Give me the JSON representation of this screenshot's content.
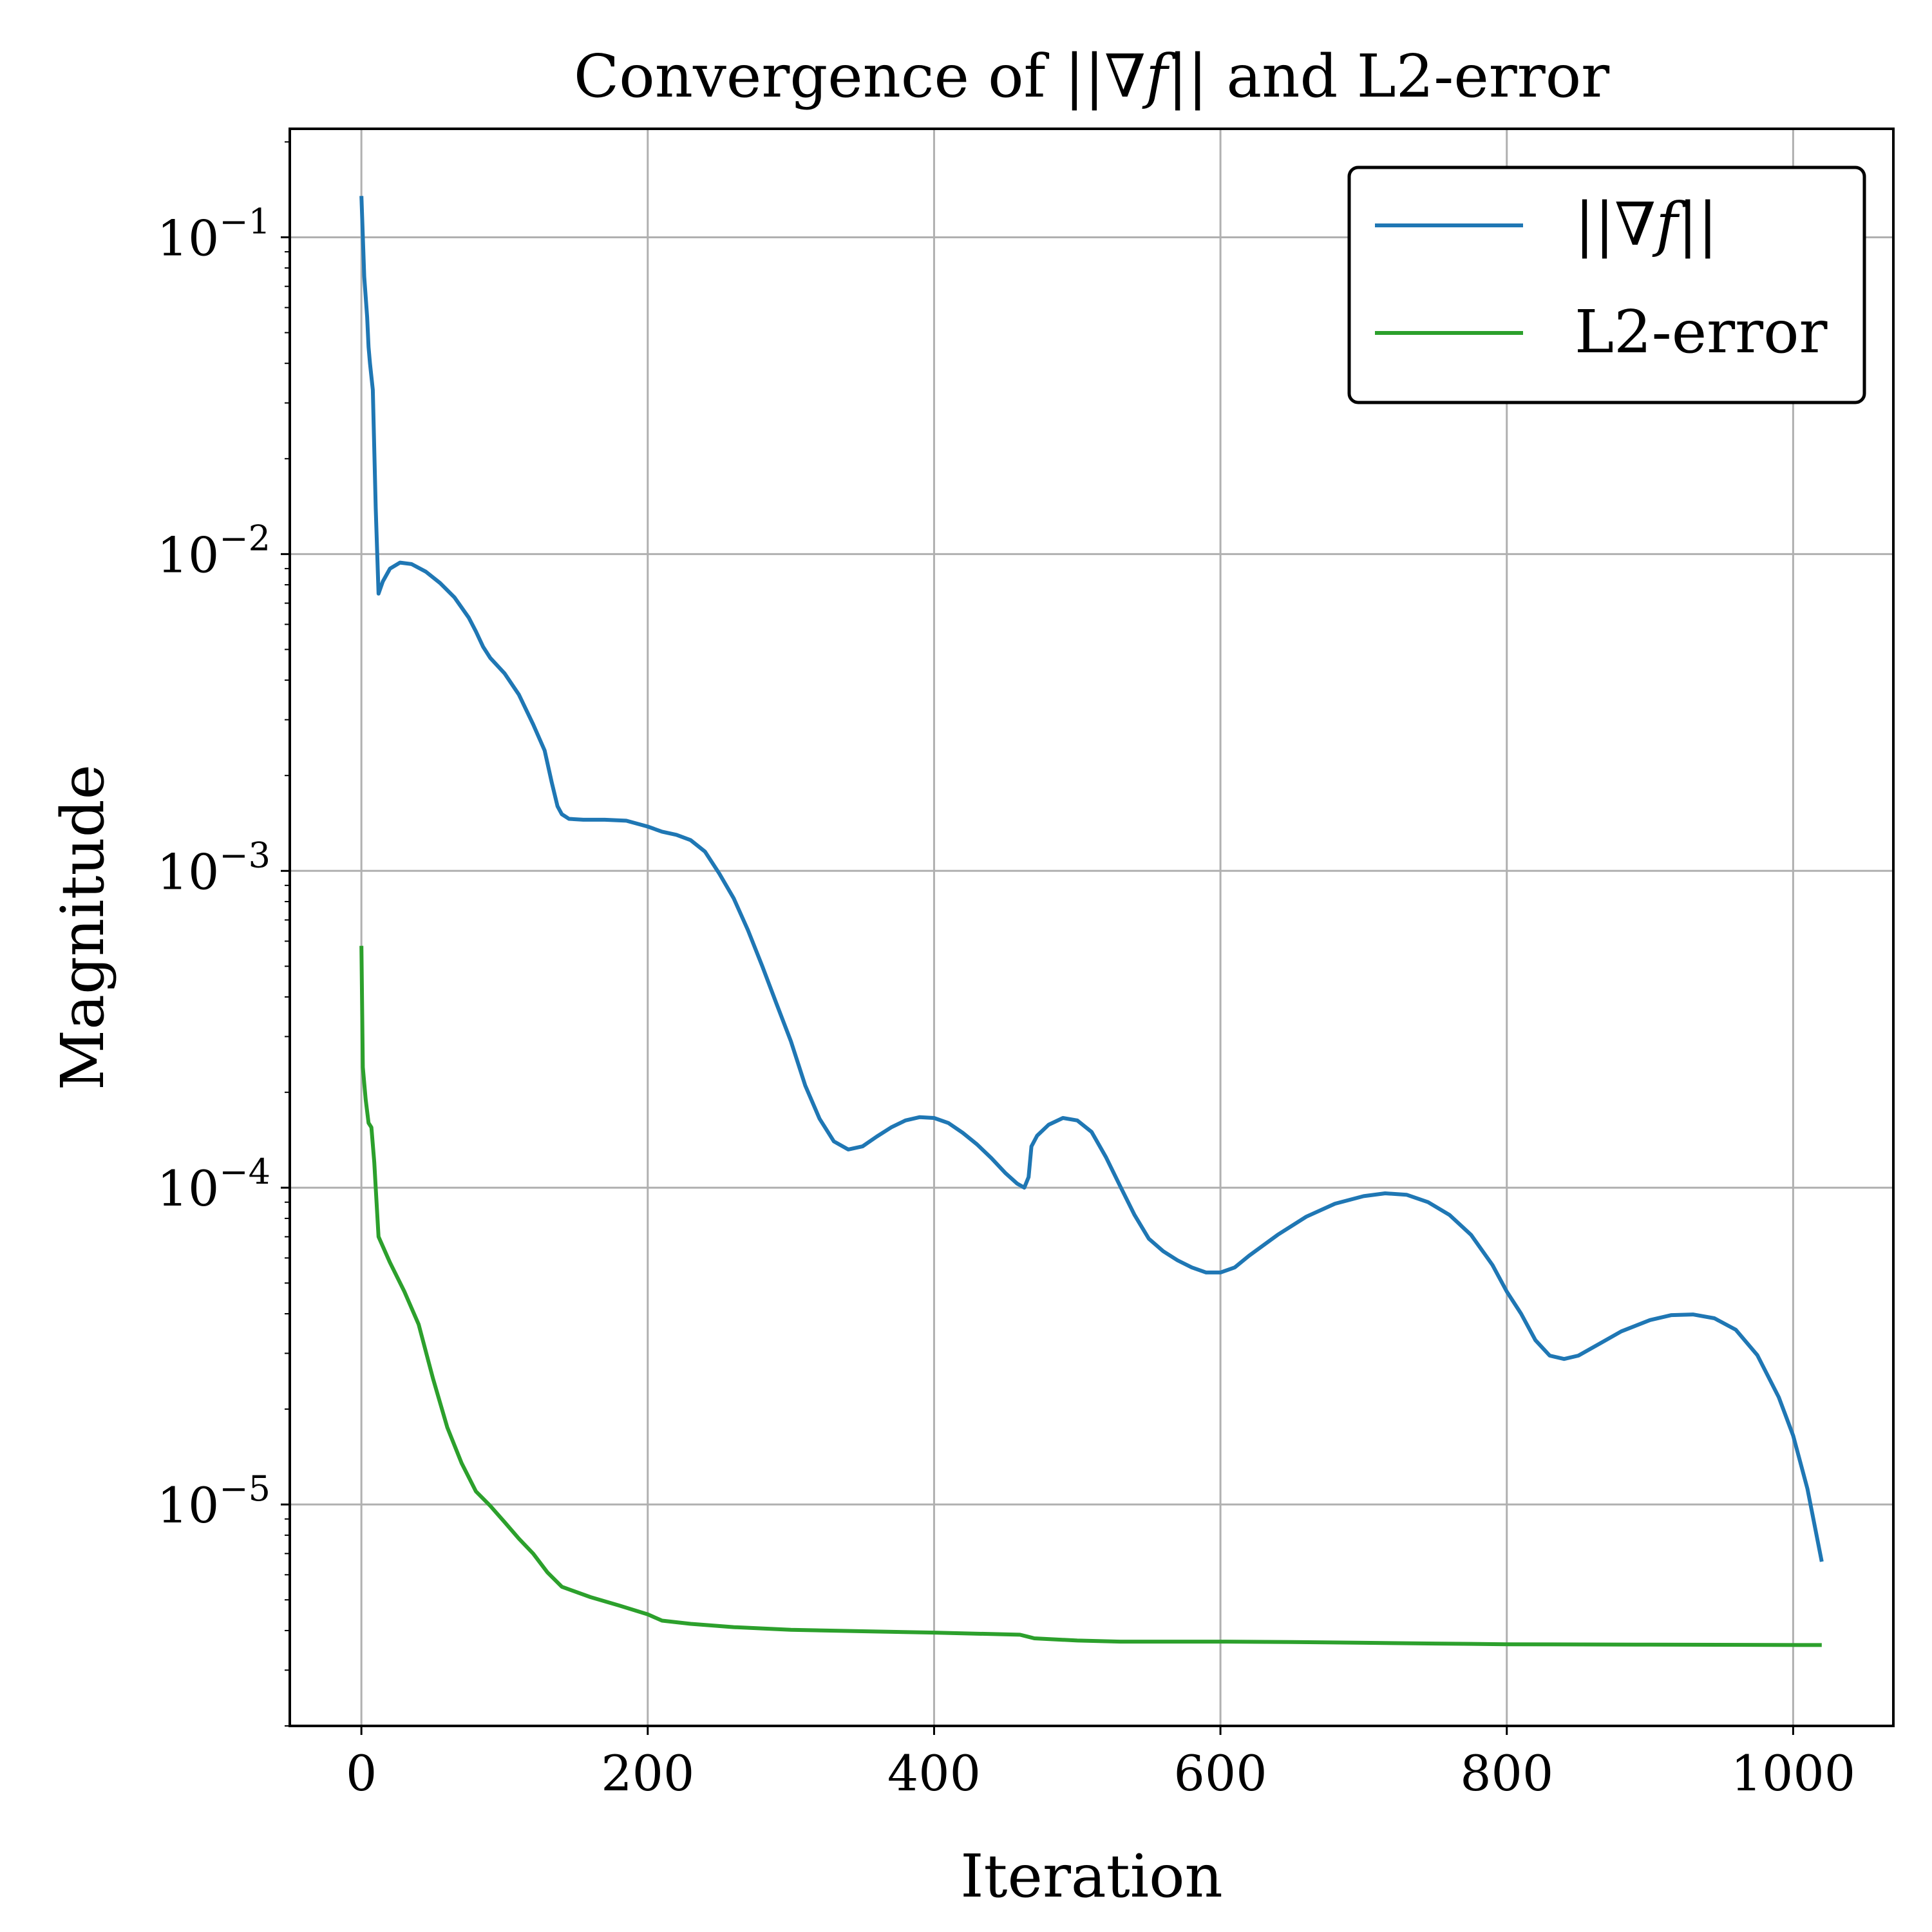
{
  "chart_data": {
    "type": "line",
    "title_parts": [
      "Convergence of ||∇",
      "f",
      "|| and L2-error"
    ],
    "xlabel": "Iteration",
    "ylabel": "Magnitude",
    "xlim": [
      -50,
      1070
    ],
    "ylim": [
      2e-06,
      0.22
    ],
    "yscale": "log",
    "grid": true,
    "legend_position": "top-right",
    "xticks": [
      0,
      200,
      400,
      600,
      800,
      1000
    ],
    "xtick_labels": [
      "0",
      "200",
      "400",
      "600",
      "800",
      "1000"
    ],
    "yticks": [
      1e-05,
      0.0001,
      0.001,
      0.01,
      0.1
    ],
    "ytick_bases": [
      "10",
      "10",
      "10",
      "10",
      "10"
    ],
    "ytick_exponents": [
      "−5",
      "−4",
      "−3",
      "−2",
      "−1"
    ],
    "series": [
      {
        "name_parts": [
          "||∇",
          "f",
          "||"
        ],
        "color": "#1f77b4",
        "points": [
          [
            0,
            0.135
          ],
          [
            2,
            0.075
          ],
          [
            4,
            0.056
          ],
          [
            5,
            0.045
          ],
          [
            6,
            0.04
          ],
          [
            8,
            0.033
          ],
          [
            10,
            0.014
          ],
          [
            12,
            0.0075
          ],
          [
            15,
            0.0082
          ],
          [
            20,
            0.009
          ],
          [
            27,
            0.0094
          ],
          [
            35,
            0.0093
          ],
          [
            45,
            0.0088
          ],
          [
            55,
            0.0081
          ],
          [
            65,
            0.0073
          ],
          [
            75,
            0.0063
          ],
          [
            80,
            0.0057
          ],
          [
            85,
            0.0051
          ],
          [
            90,
            0.0047
          ],
          [
            100,
            0.0042
          ],
          [
            110,
            0.0036
          ],
          [
            120,
            0.0029
          ],
          [
            128,
            0.0024
          ],
          [
            133,
            0.0019
          ],
          [
            137,
            0.0016
          ],
          [
            140,
            0.00151
          ],
          [
            145,
            0.00146
          ],
          [
            155,
            0.00145
          ],
          [
            170,
            0.00145
          ],
          [
            185,
            0.00144
          ],
          [
            200,
            0.00138
          ],
          [
            210,
            0.00133
          ],
          [
            220,
            0.0013
          ],
          [
            230,
            0.00125
          ],
          [
            240,
            0.00115
          ],
          [
            250,
            0.00098
          ],
          [
            260,
            0.00082
          ],
          [
            270,
            0.00065
          ],
          [
            280,
            0.0005
          ],
          [
            290,
            0.00038
          ],
          [
            300,
            0.00029
          ],
          [
            310,
            0.00021
          ],
          [
            320,
            0.000165
          ],
          [
            330,
            0.00014
          ],
          [
            340,
            0.000132
          ],
          [
            350,
            0.000135
          ],
          [
            360,
            0.000145
          ],
          [
            370,
            0.000155
          ],
          [
            380,
            0.000163
          ],
          [
            390,
            0.000167
          ],
          [
            400,
            0.000166
          ],
          [
            410,
            0.00016
          ],
          [
            420,
            0.000149
          ],
          [
            430,
            0.000137
          ],
          [
            440,
            0.000124
          ],
          [
            450,
            0.000111
          ],
          [
            458,
            0.000103
          ],
          [
            463,
            0.0001
          ],
          [
            466,
            0.000108
          ],
          [
            468,
            0.000135
          ],
          [
            472,
            0.000146
          ],
          [
            480,
            0.000158
          ],
          [
            490,
            0.000166
          ],
          [
            500,
            0.000163
          ],
          [
            510,
            0.00015
          ],
          [
            520,
            0.000125
          ],
          [
            530,
            0.000101
          ],
          [
            540,
            8.2e-05
          ],
          [
            550,
            6.9e-05
          ],
          [
            560,
            6.3e-05
          ],
          [
            570,
            5.9e-05
          ],
          [
            580,
            5.6e-05
          ],
          [
            590,
            5.4e-05
          ],
          [
            600,
            5.4e-05
          ],
          [
            610,
            5.6e-05
          ],
          [
            620,
            6.1e-05
          ],
          [
            640,
            7.1e-05
          ],
          [
            660,
            8.1e-05
          ],
          [
            680,
            8.9e-05
          ],
          [
            700,
            9.4e-05
          ],
          [
            715,
            9.6e-05
          ],
          [
            730,
            9.5e-05
          ],
          [
            745,
            9e-05
          ],
          [
            760,
            8.2e-05
          ],
          [
            775,
            7.1e-05
          ],
          [
            790,
            5.7e-05
          ],
          [
            800,
            4.7e-05
          ],
          [
            810,
            4e-05
          ],
          [
            820,
            3.3e-05
          ],
          [
            830,
            2.95e-05
          ],
          [
            840,
            2.88e-05
          ],
          [
            850,
            2.95e-05
          ],
          [
            865,
            3.22e-05
          ],
          [
            880,
            3.52e-05
          ],
          [
            900,
            3.82e-05
          ],
          [
            915,
            3.96e-05
          ],
          [
            930,
            3.98e-05
          ],
          [
            945,
            3.87e-05
          ],
          [
            960,
            3.56e-05
          ],
          [
            975,
            2.96e-05
          ],
          [
            990,
            2.18e-05
          ],
          [
            1000,
            1.65e-05
          ],
          [
            1010,
            1.12e-05
          ],
          [
            1020,
            6.6e-06
          ]
        ]
      },
      {
        "name": "L2-error",
        "color": "#2ca02c",
        "points": [
          [
            0,
            0.00058
          ],
          [
            1,
            0.00024
          ],
          [
            3,
            0.00019
          ],
          [
            5,
            0.00016
          ],
          [
            7,
            0.000155
          ],
          [
            9,
            0.00012
          ],
          [
            10,
            0.0001
          ],
          [
            12,
            7e-05
          ],
          [
            20,
            5.8e-05
          ],
          [
            30,
            4.7e-05
          ],
          [
            40,
            3.7e-05
          ],
          [
            50,
            2.5e-05
          ],
          [
            60,
            1.75e-05
          ],
          [
            70,
            1.35e-05
          ],
          [
            80,
            1.1e-05
          ],
          [
            90,
            9.9e-06
          ],
          [
            100,
            8.8e-06
          ],
          [
            110,
            7.8e-06
          ],
          [
            120,
            7e-06
          ],
          [
            130,
            6.1e-06
          ],
          [
            140,
            5.5e-06
          ],
          [
            160,
            5.1e-06
          ],
          [
            180,
            4.8e-06
          ],
          [
            200,
            4.5e-06
          ],
          [
            210,
            4.3e-06
          ],
          [
            230,
            4.2e-06
          ],
          [
            260,
            4.1e-06
          ],
          [
            300,
            4.02e-06
          ],
          [
            350,
            3.98e-06
          ],
          [
            400,
            3.94e-06
          ],
          [
            460,
            3.88e-06
          ],
          [
            465,
            3.83e-06
          ],
          [
            470,
            3.78e-06
          ],
          [
            500,
            3.72e-06
          ],
          [
            530,
            3.69e-06
          ],
          [
            600,
            3.69e-06
          ],
          [
            650,
            3.68e-06
          ],
          [
            700,
            3.66e-06
          ],
          [
            750,
            3.64e-06
          ],
          [
            800,
            3.62e-06
          ],
          [
            900,
            3.61e-06
          ],
          [
            1020,
            3.6e-06
          ]
        ]
      }
    ]
  }
}
